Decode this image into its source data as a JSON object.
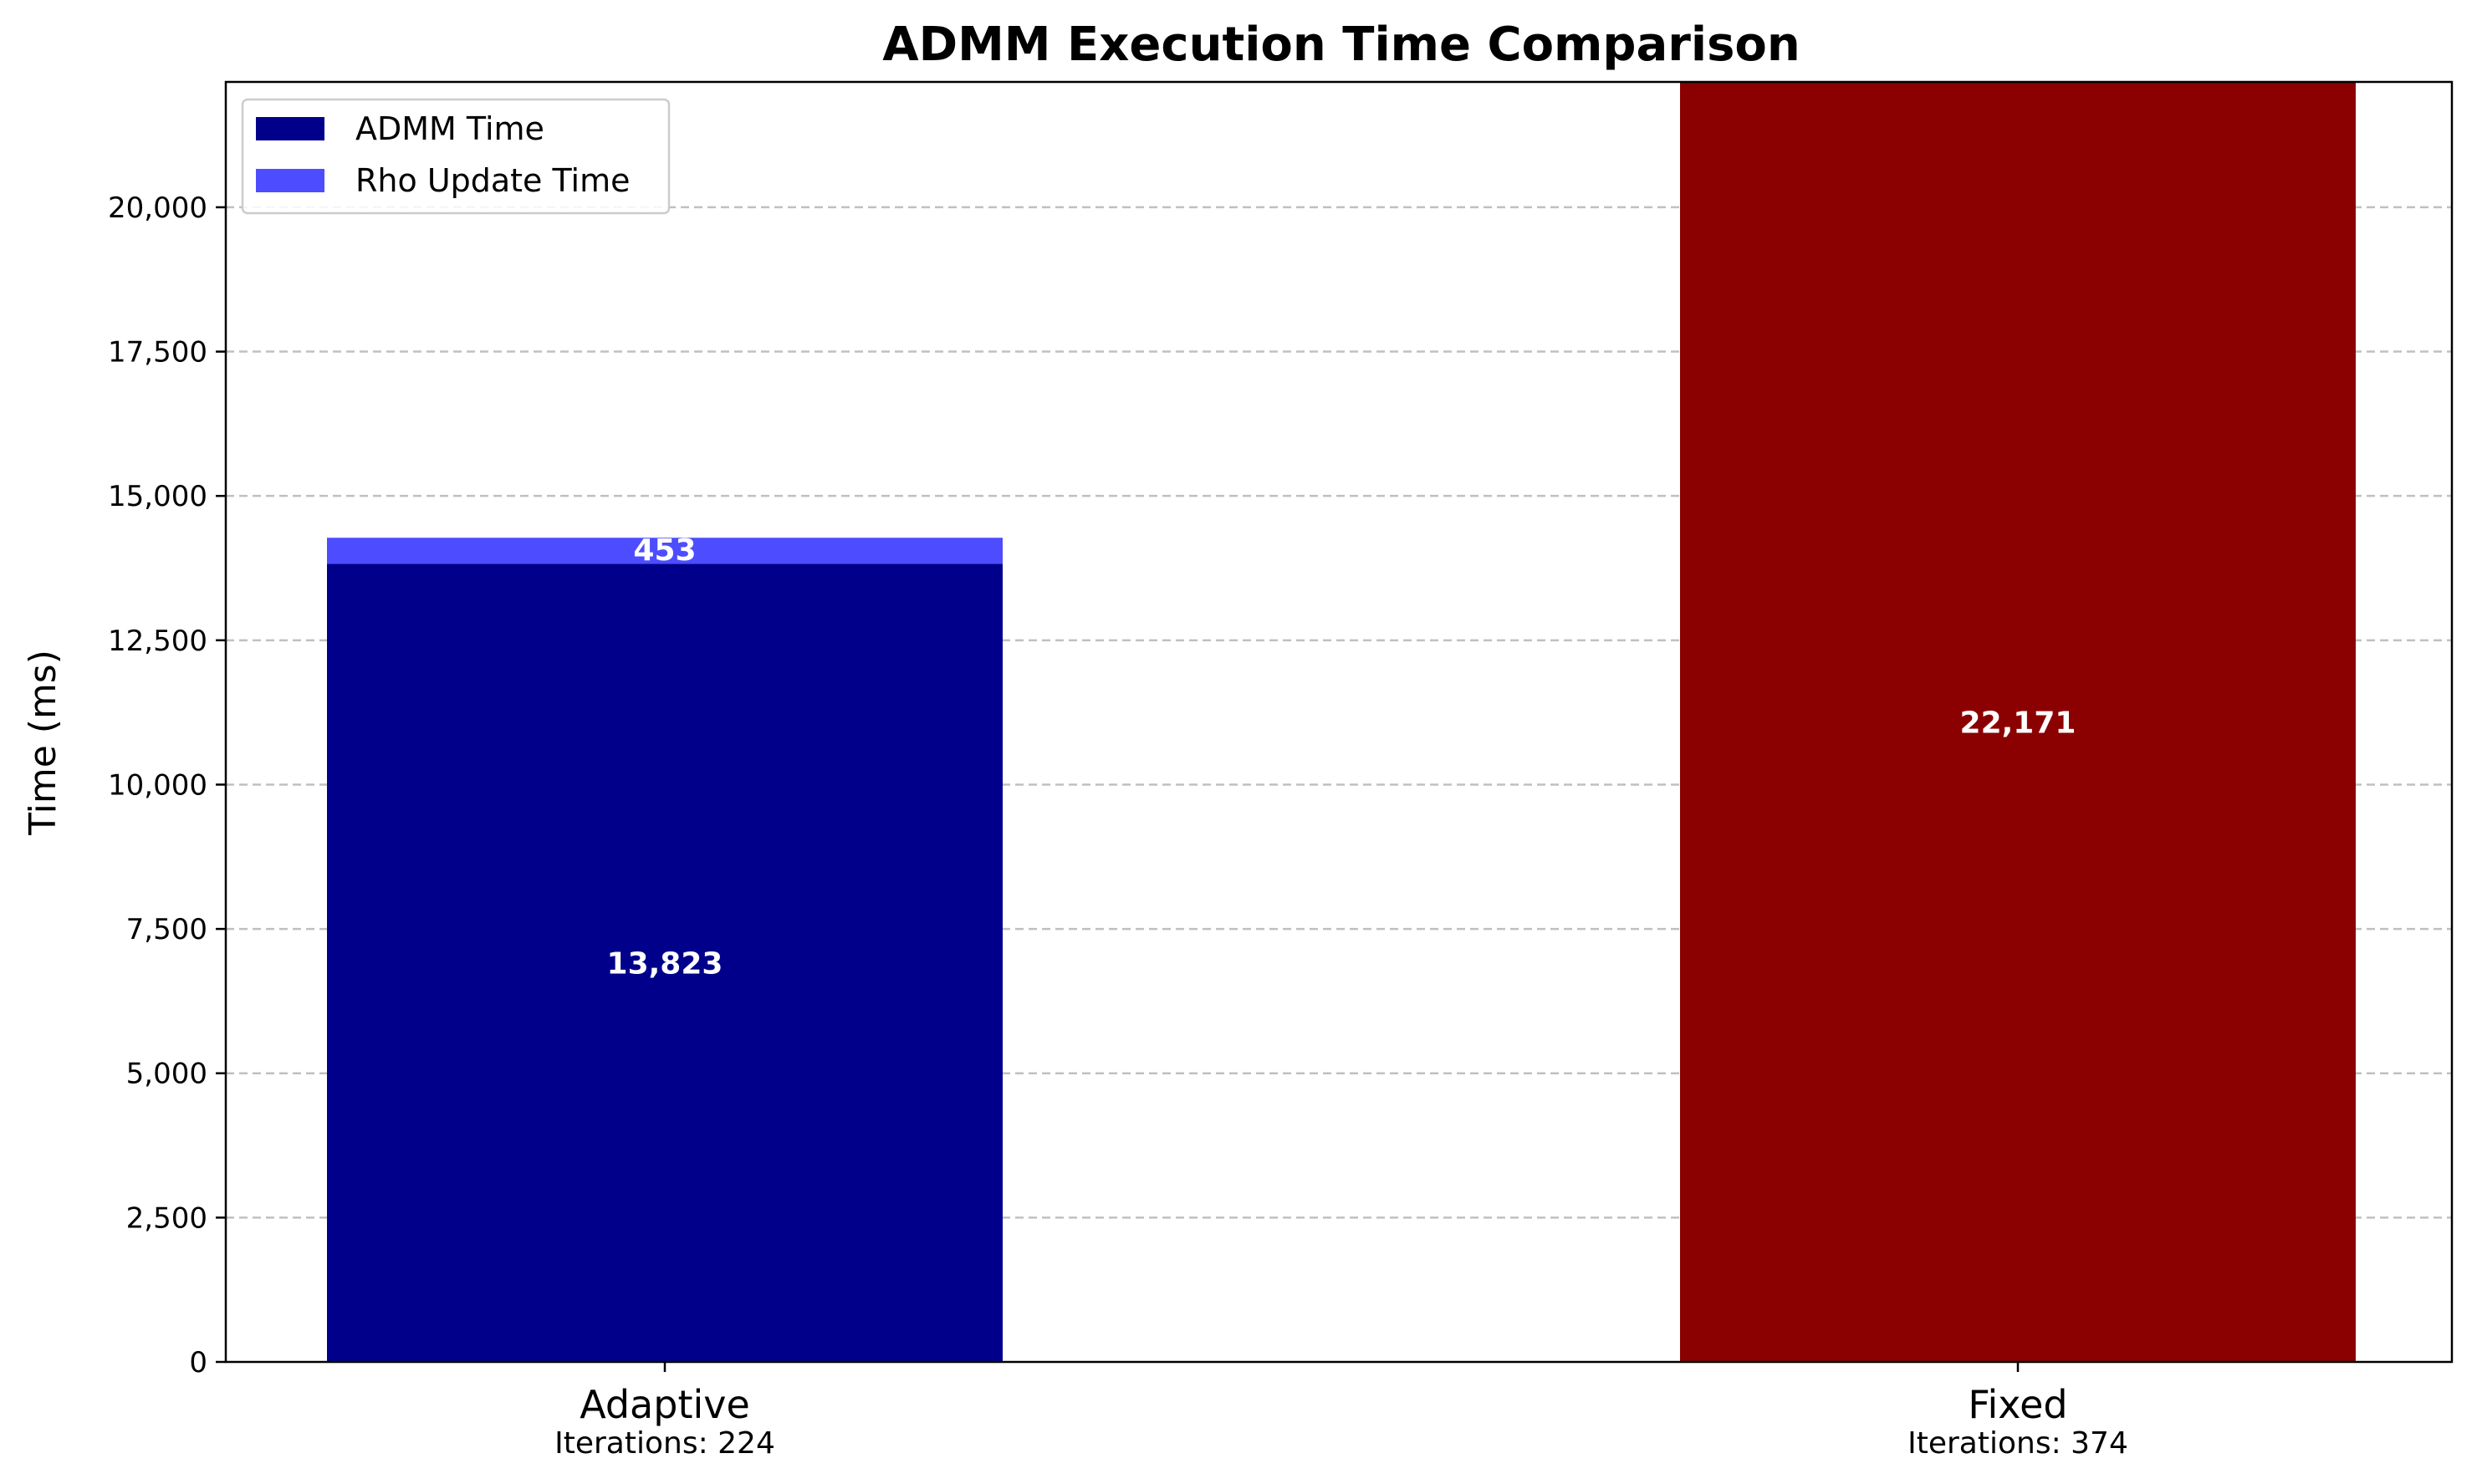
{
  "chart_data": {
    "type": "bar",
    "stacked": true,
    "title": "ADMM Execution Time Comparison",
    "xlabel": "",
    "ylabel": "Time (ms)",
    "ylim": [
      0,
      22171
    ],
    "yticks": [
      0,
      2500,
      5000,
      7500,
      10000,
      12500,
      15000,
      17500,
      20000
    ],
    "ytick_labels": [
      "0",
      "2,500",
      "5,000",
      "7,500",
      "10,000",
      "12,500",
      "15,000",
      "17,500",
      "20,000"
    ],
    "grid": "y-dashed",
    "categories": [
      "Adaptive",
      "Fixed"
    ],
    "category_sublabels": [
      "Iterations: 224",
      "Iterations: 374"
    ],
    "bars": [
      {
        "category": "Adaptive",
        "segments": [
          {
            "series": "ADMM Time",
            "value": 13823,
            "label": "13,823",
            "color": "#00008b"
          },
          {
            "series": "Rho Update Time",
            "value": 453,
            "label": "453",
            "color": "#4d4dff"
          }
        ]
      },
      {
        "category": "Fixed",
        "segments": [
          {
            "series": "",
            "value": 22171,
            "label": "22,171",
            "color": "#8b0000"
          }
        ]
      }
    ],
    "legend": {
      "position": "top-left",
      "entries": [
        {
          "name": "ADMM Time",
          "color": "#00008b"
        },
        {
          "name": "Rho Update Time",
          "color": "#4d4dff"
        }
      ]
    }
  }
}
